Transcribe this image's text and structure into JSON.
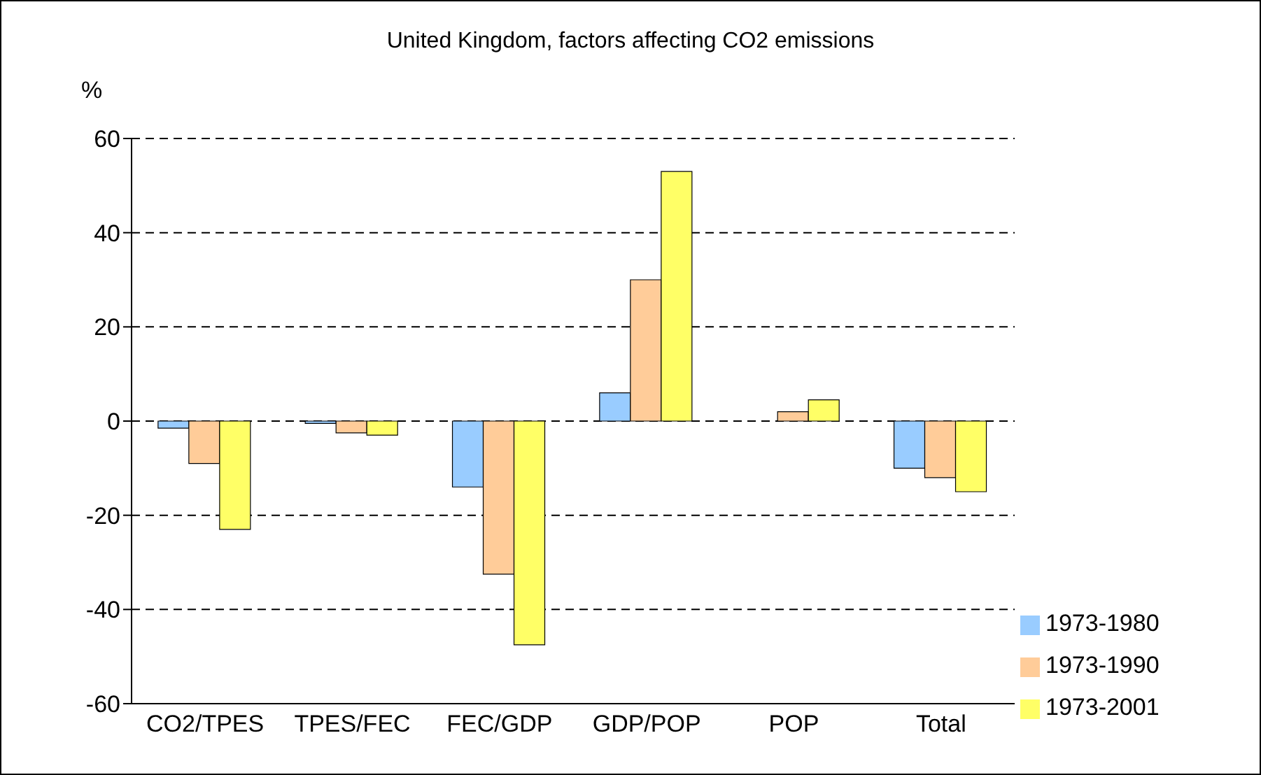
{
  "chart_data": {
    "type": "bar",
    "title": "United Kingdom, factors affecting CO2 emissions",
    "ylabel": "%",
    "categories": [
      "CO2/TPES",
      "TPES/FEC",
      "FEC/GDP",
      "GDP/POP",
      "POP",
      "Total"
    ],
    "series": [
      {
        "name": "1973-1980",
        "color": "#99ccff",
        "values": [
          -1.5,
          -0.5,
          -14,
          6,
          null,
          -10
        ]
      },
      {
        "name": "1973-1990",
        "color": "#ffcc99",
        "values": [
          -9,
          -2.5,
          -32.5,
          30,
          2,
          -12
        ]
      },
      {
        "name": "1973-2001",
        "color": "#ffff66",
        "values": [
          -23,
          -3,
          -47.5,
          53,
          4.5,
          -15
        ]
      }
    ],
    "ylim": [
      -60,
      60
    ],
    "yticks": [
      -60,
      -40,
      -20,
      0,
      20,
      40,
      60
    ],
    "grid": "y",
    "legend": "bottom right"
  }
}
